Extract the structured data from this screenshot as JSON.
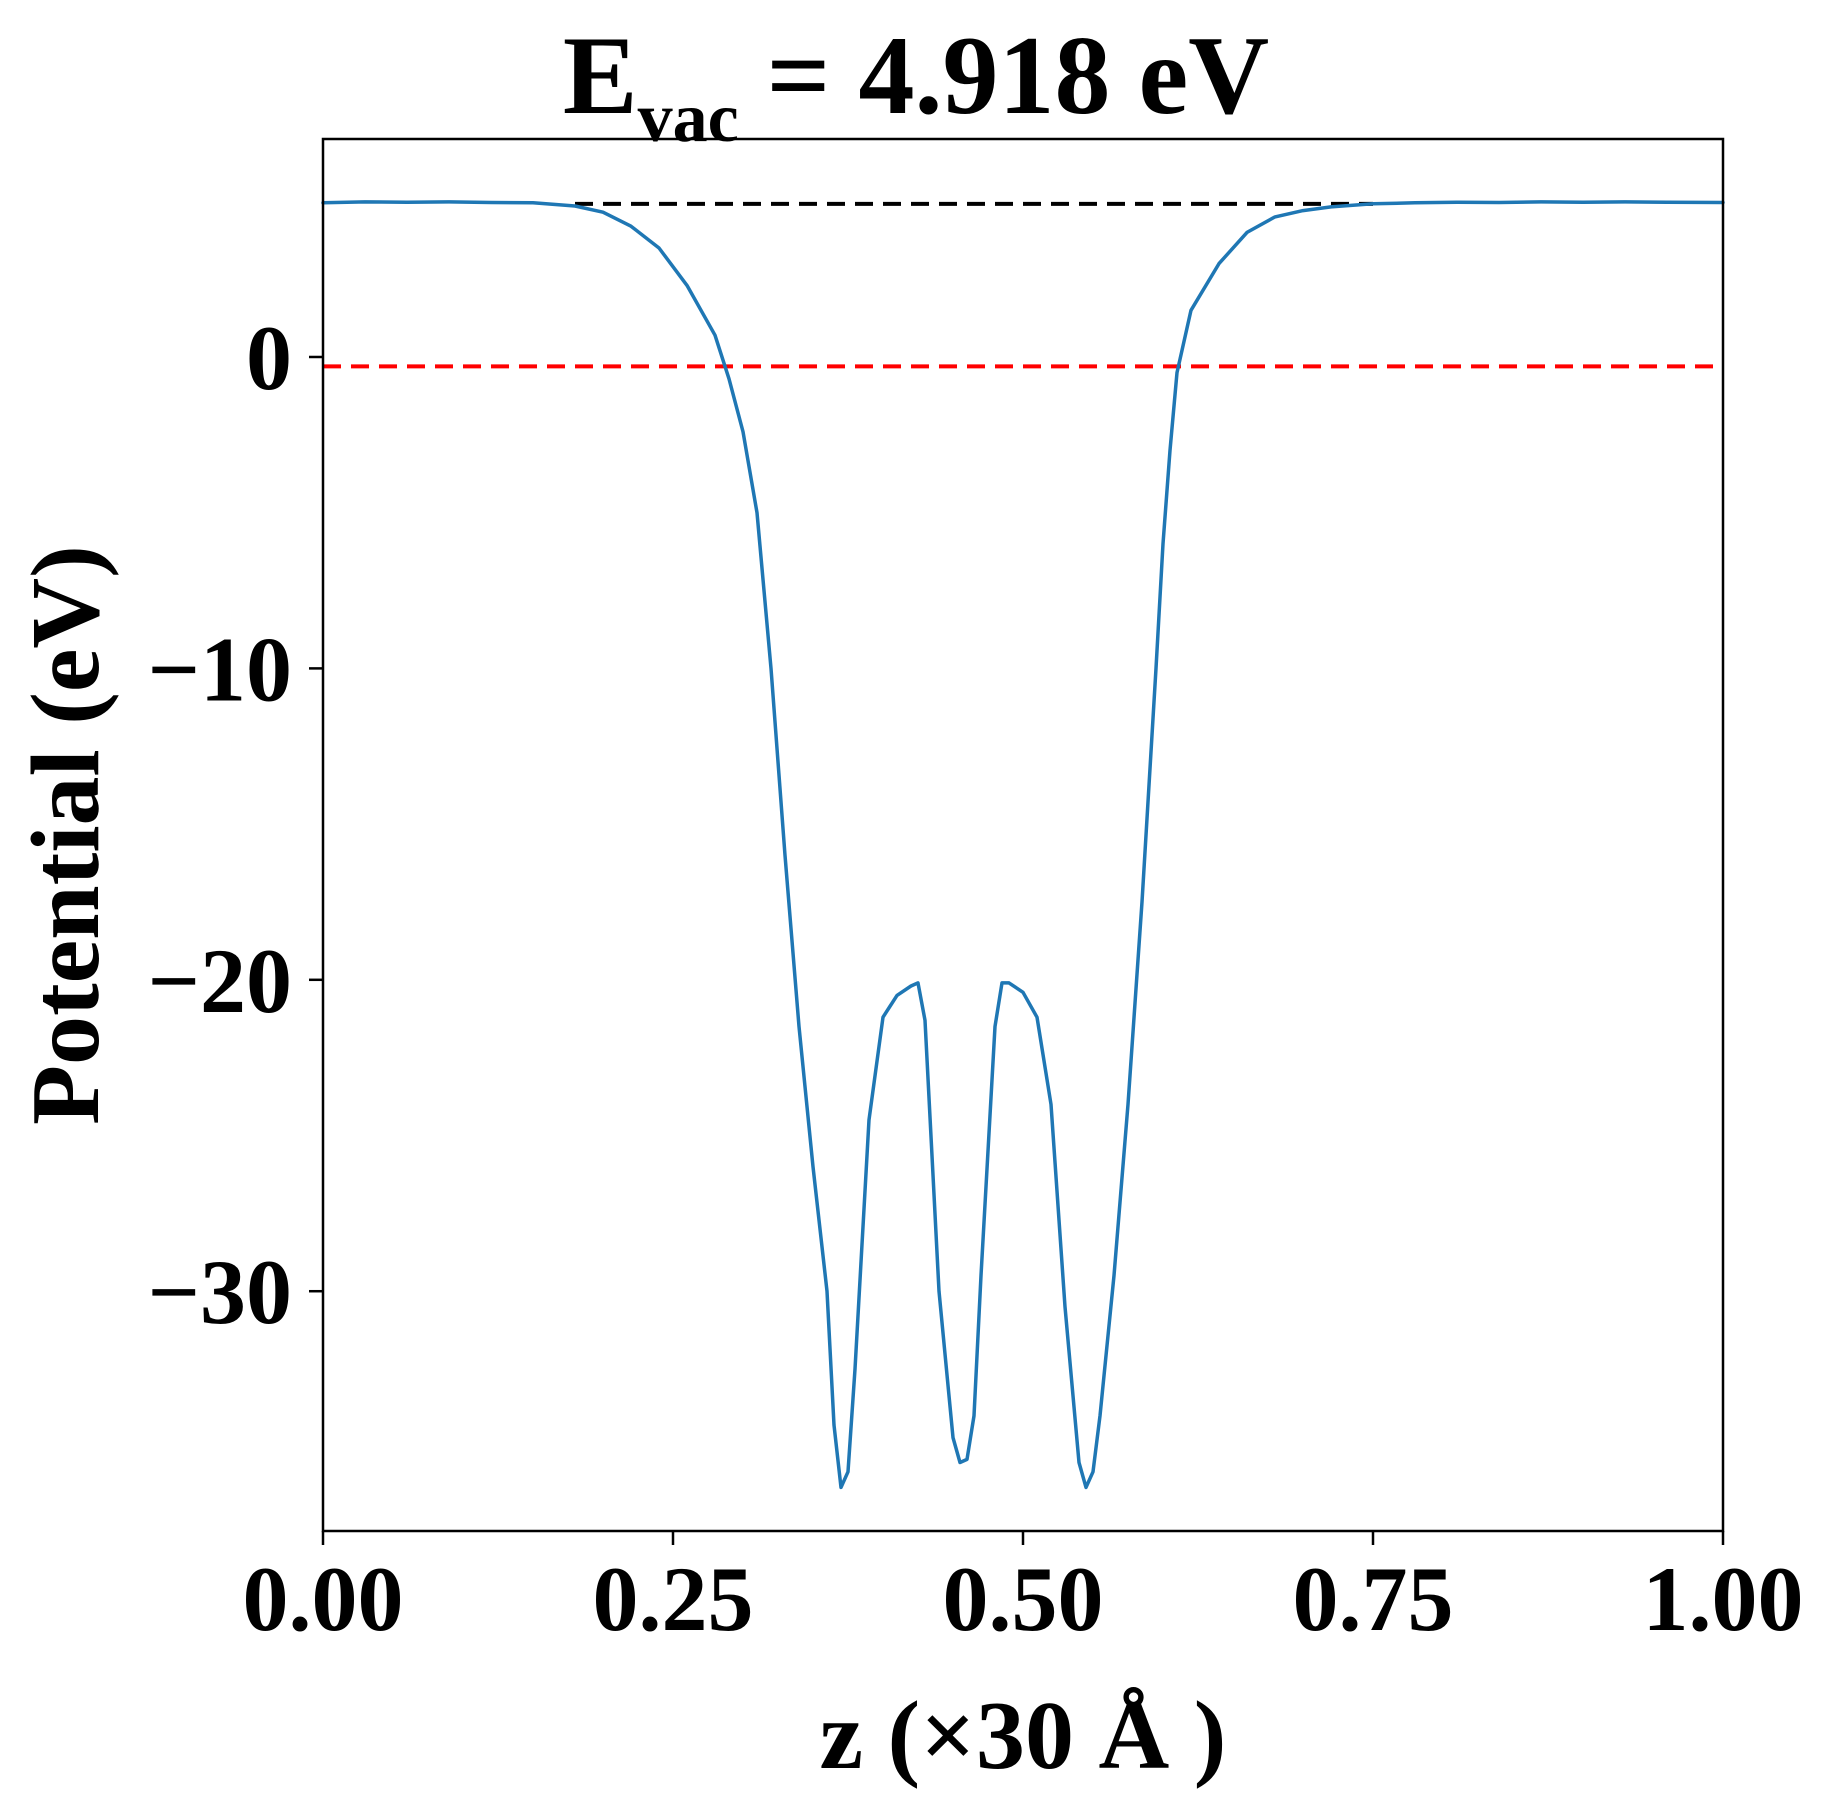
{
  "chart_data": {
    "type": "line",
    "title": {
      "symbol": "E",
      "subscript": "vac",
      "rest": " = 4.918 eV"
    },
    "xlabel": "z (×30 Å )",
    "ylabel": "Potential (eV)",
    "xlim": [
      0,
      1
    ],
    "ylim": [
      -37.7,
      7.0
    ],
    "xticks": [
      0.0,
      0.25,
      0.5,
      0.75,
      1.0
    ],
    "xtick_labels": [
      "0.00",
      "0.25",
      "0.50",
      "0.75",
      "1.00"
    ],
    "yticks": [
      0,
      -10,
      -20,
      -30
    ],
    "ytick_labels": [
      "0",
      "−10",
      "−20",
      "−30"
    ],
    "grid": false,
    "reference_lines": [
      {
        "y": 4.918,
        "x_range": [
          0.18,
          0.75
        ],
        "color": "#000000",
        "style": "dashed"
      },
      {
        "y": -0.3,
        "x_range": [
          0.0,
          1.0
        ],
        "color": "#ff0000",
        "style": "dashed"
      }
    ],
    "series": [
      {
        "color": "#1f77b4",
        "points": [
          [
            0.0,
            4.95
          ],
          [
            0.03,
            4.98
          ],
          [
            0.06,
            4.97
          ],
          [
            0.09,
            4.98
          ],
          [
            0.12,
            4.96
          ],
          [
            0.15,
            4.95
          ],
          [
            0.18,
            4.85
          ],
          [
            0.2,
            4.65
          ],
          [
            0.22,
            4.2
          ],
          [
            0.24,
            3.5
          ],
          [
            0.26,
            2.3
          ],
          [
            0.28,
            0.7
          ],
          [
            0.29,
            -0.7
          ],
          [
            0.3,
            -2.4
          ],
          [
            0.31,
            -5.0
          ],
          [
            0.32,
            -10.0
          ],
          [
            0.33,
            -16.0
          ],
          [
            0.34,
            -21.5
          ],
          [
            0.35,
            -26.0
          ],
          [
            0.36,
            -30.0
          ],
          [
            0.365,
            -34.3
          ],
          [
            0.37,
            -36.3
          ],
          [
            0.375,
            -35.8
          ],
          [
            0.38,
            -32.5
          ],
          [
            0.39,
            -24.5
          ],
          [
            0.4,
            -21.2
          ],
          [
            0.41,
            -20.5
          ],
          [
            0.42,
            -20.2
          ],
          [
            0.425,
            -20.1
          ],
          [
            0.43,
            -21.3
          ],
          [
            0.44,
            -30.0
          ],
          [
            0.45,
            -34.7
          ],
          [
            0.455,
            -35.5
          ],
          [
            0.46,
            -35.4
          ],
          [
            0.465,
            -34.0
          ],
          [
            0.47,
            -29.5
          ],
          [
            0.48,
            -21.5
          ],
          [
            0.485,
            -20.1
          ],
          [
            0.49,
            -20.1
          ],
          [
            0.5,
            -20.4
          ],
          [
            0.51,
            -21.2
          ],
          [
            0.52,
            -24.0
          ],
          [
            0.53,
            -30.5
          ],
          [
            0.54,
            -35.5
          ],
          [
            0.545,
            -36.3
          ],
          [
            0.55,
            -35.8
          ],
          [
            0.555,
            -34.0
          ],
          [
            0.565,
            -29.5
          ],
          [
            0.575,
            -24.0
          ],
          [
            0.585,
            -17.5
          ],
          [
            0.595,
            -10.0
          ],
          [
            0.6,
            -6.0
          ],
          [
            0.605,
            -3.0
          ],
          [
            0.61,
            -0.5
          ],
          [
            0.62,
            1.5
          ],
          [
            0.64,
            3.0
          ],
          [
            0.66,
            4.0
          ],
          [
            0.68,
            4.5
          ],
          [
            0.7,
            4.7
          ],
          [
            0.72,
            4.82
          ],
          [
            0.75,
            4.92
          ],
          [
            0.78,
            4.95
          ],
          [
            0.81,
            4.97
          ],
          [
            0.84,
            4.96
          ],
          [
            0.87,
            4.98
          ],
          [
            0.9,
            4.97
          ],
          [
            0.93,
            4.98
          ],
          [
            0.96,
            4.97
          ],
          [
            1.0,
            4.96
          ]
        ]
      }
    ]
  }
}
